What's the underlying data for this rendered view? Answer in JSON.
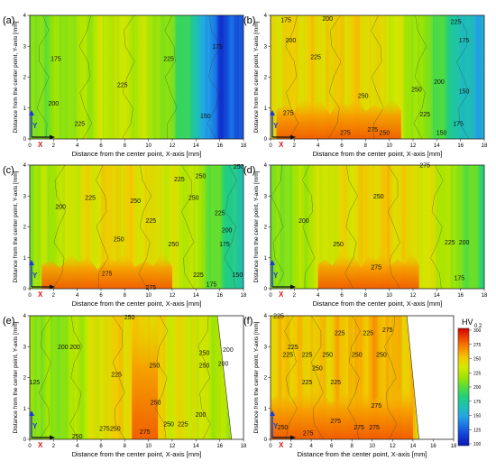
{
  "figure": {
    "colorbar": {
      "title": "HV",
      "subscript": "0.2",
      "ticks": [
        "300",
        "275",
        "250",
        "225",
        "200",
        "175",
        "150",
        "125",
        "100"
      ],
      "colors": [
        "#d40000",
        "#f04500",
        "#f88a00",
        "#f4c800",
        "#d2e800",
        "#9fe400",
        "#56dd3a",
        "#22cf7a",
        "#1ec0b4",
        "#22a6e6",
        "#1a70e6",
        "#123cd4",
        "#0c14b4"
      ]
    }
  },
  "chart_data": [
    {
      "id": "a",
      "type": "heatmap",
      "panel_label": "(a)",
      "xlabel": "Distance from the center point, X-axis [mm]",
      "ylabel": "Distance from the center point, Y-axis [mm]",
      "xticks": [
        "0",
        "2",
        "4",
        "6",
        "8",
        "10",
        "12",
        "14",
        "16",
        "18"
      ],
      "yticks": [
        "0",
        "1",
        "2",
        "3",
        "4"
      ],
      "xlim": [
        0,
        18
      ],
      "ylim": [
        0,
        4
      ],
      "x_extent": 18,
      "profile_x": [
        0,
        2,
        4,
        6,
        8,
        10,
        12,
        14,
        16,
        18
      ],
      "profile_hv": [
        205,
        212,
        218,
        226,
        228,
        224,
        205,
        170,
        120,
        130
      ],
      "red_zone": null,
      "contour_labels": [
        {
          "text": "175",
          "x": 2.2,
          "y": 2.6
        },
        {
          "text": "225",
          "x": 11.7,
          "y": 2.6
        },
        {
          "text": "175",
          "x": 15.8,
          "y": 3.0
        },
        {
          "text": "225",
          "x": 7.8,
          "y": 1.75
        },
        {
          "text": "200",
          "x": 2.0,
          "y": 1.15
        },
        {
          "text": "225",
          "x": 4.2,
          "y": 0.5
        },
        {
          "text": "150",
          "x": 14.8,
          "y": 0.75
        }
      ],
      "axis_markers": {
        "x": "X",
        "y": "Y"
      }
    },
    {
      "id": "b",
      "type": "heatmap",
      "panel_label": "(b)",
      "xlabel": "Distance from the center point, X-axis [mm]",
      "ylabel": "Distance from the center point, Y-axis [mm]",
      "xticks": [
        "0",
        "2",
        "4",
        "6",
        "8",
        "10",
        "12",
        "14",
        "16",
        "18"
      ],
      "yticks": [
        "0",
        "1",
        "2",
        "3",
        "4"
      ],
      "xlim": [
        0,
        18
      ],
      "ylim": [
        0,
        4
      ],
      "x_extent": 18,
      "profile_x": [
        0,
        2,
        4,
        6,
        8,
        10,
        12,
        14,
        16,
        18
      ],
      "profile_hv": [
        238,
        245,
        244,
        246,
        244,
        236,
        218,
        200,
        165,
        155
      ],
      "red_zone": {
        "x0": 0.5,
        "x1": 11,
        "depth": 1.25,
        "amp": 28
      },
      "contour_labels": [
        {
          "text": "175",
          "x": 1.3,
          "y": 3.85
        },
        {
          "text": "200",
          "x": 4.8,
          "y": 3.9
        },
        {
          "text": "200",
          "x": 1.7,
          "y": 3.2
        },
        {
          "text": "225",
          "x": 15.6,
          "y": 3.8
        },
        {
          "text": "175",
          "x": 16.3,
          "y": 3.2
        },
        {
          "text": "225",
          "x": 3.8,
          "y": 2.65
        },
        {
          "text": "200",
          "x": 14.2,
          "y": 1.85
        },
        {
          "text": "250",
          "x": 7.8,
          "y": 1.4
        },
        {
          "text": "150",
          "x": 16.3,
          "y": 1.55
        },
        {
          "text": "250",
          "x": 12.3,
          "y": 1.6
        },
        {
          "text": "275",
          "x": 1.5,
          "y": 0.85
        },
        {
          "text": "225",
          "x": 13.0,
          "y": 0.8
        },
        {
          "text": "175",
          "x": 15.8,
          "y": 0.5
        },
        {
          "text": "150",
          "x": 14.4,
          "y": 0.2
        },
        {
          "text": "275",
          "x": 6.3,
          "y": 0.2
        },
        {
          "text": "275",
          "x": 8.6,
          "y": 0.3
        },
        {
          "text": "250",
          "x": 9.6,
          "y": 0.2
        }
      ],
      "axis_markers": {
        "x": "X",
        "y": "Y"
      }
    },
    {
      "id": "c",
      "type": "heatmap",
      "panel_label": "(c)",
      "xlabel": "Distance from the center point, X-axis [mm]",
      "ylabel": "Distance from the center point, Y-axis [mm]",
      "xticks": [
        "0",
        "2",
        "4",
        "6",
        "8",
        "10",
        "12",
        "14",
        "16",
        "18"
      ],
      "yticks": [
        "0",
        "1",
        "2",
        "3",
        "4"
      ],
      "xlim": [
        0,
        18
      ],
      "ylim": [
        0,
        4
      ],
      "x_extent": 18,
      "profile_x": [
        0,
        2,
        4,
        6,
        8,
        10,
        12,
        14,
        16,
        18
      ],
      "profile_hv": [
        215,
        222,
        235,
        242,
        244,
        240,
        232,
        222,
        195,
        165
      ],
      "red_zone": {
        "x0": 1,
        "x1": 12,
        "depth": 1.05,
        "amp": 24
      },
      "contour_labels": [
        {
          "text": "250",
          "x": 17.6,
          "y": 3.95
        },
        {
          "text": "225",
          "x": 12.6,
          "y": 3.55
        },
        {
          "text": "250",
          "x": 14.4,
          "y": 3.65
        },
        {
          "text": "225",
          "x": 5.1,
          "y": 2.95
        },
        {
          "text": "250",
          "x": 8.9,
          "y": 2.85
        },
        {
          "text": "250",
          "x": 13.8,
          "y": 2.95
        },
        {
          "text": "200",
          "x": 2.6,
          "y": 2.65
        },
        {
          "text": "225",
          "x": 10.2,
          "y": 2.2
        },
        {
          "text": "225",
          "x": 16.0,
          "y": 2.45
        },
        {
          "text": "200",
          "x": 16.6,
          "y": 1.9
        },
        {
          "text": "250",
          "x": 7.5,
          "y": 1.6
        },
        {
          "text": "250",
          "x": 12.1,
          "y": 1.45
        },
        {
          "text": "175",
          "x": 16.4,
          "y": 1.45
        },
        {
          "text": "275",
          "x": 6.5,
          "y": 0.5
        },
        {
          "text": "225",
          "x": 14.2,
          "y": 0.45
        },
        {
          "text": "150",
          "x": 17.5,
          "y": 0.45
        },
        {
          "text": "175",
          "x": 15.3,
          "y": 0.15
        },
        {
          "text": "275",
          "x": 10.2,
          "y": 0.05
        }
      ],
      "axis_markers": {
        "x": "X",
        "y": "Y"
      }
    },
    {
      "id": "d",
      "type": "heatmap",
      "panel_label": "(d)",
      "xlabel": "Distance from the center point, X-axis [mm]",
      "ylabel": "Distance from the center point, Y-axis [mm]",
      "xticks": [
        "0",
        "2",
        "4",
        "6",
        "8",
        "10",
        "12",
        "14",
        "16",
        "18"
      ],
      "yticks": [
        "0",
        "1",
        "2",
        "3",
        "4"
      ],
      "xlim": [
        0,
        18
      ],
      "ylim": [
        0,
        4
      ],
      "x_extent": 18,
      "profile_x": [
        0,
        2,
        4,
        6,
        8,
        10,
        12,
        14,
        16,
        18
      ],
      "profile_hv": [
        205,
        215,
        230,
        238,
        245,
        248,
        240,
        228,
        210,
        190
      ],
      "red_zone": {
        "x0": 4,
        "x1": 12.5,
        "depth": 1.1,
        "amp": 30
      },
      "contour_labels": [
        {
          "text": "275",
          "x": 13.0,
          "y": 4.0
        },
        {
          "text": "250",
          "x": 9.1,
          "y": 3.0
        },
        {
          "text": "200",
          "x": 2.8,
          "y": 2.2
        },
        {
          "text": "250",
          "x": 5.7,
          "y": 1.45
        },
        {
          "text": "225",
          "x": 15.1,
          "y": 1.5
        },
        {
          "text": "200",
          "x": 16.3,
          "y": 1.5
        },
        {
          "text": "275",
          "x": 8.9,
          "y": 0.7
        },
        {
          "text": "175",
          "x": 15.9,
          "y": 0.35
        }
      ],
      "axis_markers": {
        "x": "X",
        "y": "Y"
      }
    },
    {
      "id": "e",
      "type": "heatmap",
      "panel_label": "(e)",
      "xlabel": "Distance from the center point, X-axis [mm]",
      "ylabel": "Distance from the center point, Y-axis [mm]",
      "xticks": [
        "0",
        "2",
        "4",
        "6",
        "8",
        "10",
        "12",
        "14",
        "16",
        "18"
      ],
      "yticks": [
        "0",
        "1",
        "2",
        "3",
        "4"
      ],
      "xlim": [
        0,
        18
      ],
      "ylim": [
        0,
        4
      ],
      "x_extent": 17,
      "profile_x": [
        0,
        2,
        4,
        6,
        8,
        10,
        12,
        14,
        16,
        18
      ],
      "profile_hv": [
        215,
        210,
        222,
        240,
        246,
        245,
        238,
        232,
        222,
        215
      ],
      "red_zone": {
        "x0": 8.6,
        "x1": 10.8,
        "depth": 4,
        "amp": 22
      },
      "contour_labels": [
        {
          "text": "250",
          "x": 8.4,
          "y": 3.95
        },
        {
          "text": "200",
          "x": 2.8,
          "y": 3.0
        },
        {
          "text": "200",
          "x": 3.8,
          "y": 3.0
        },
        {
          "text": "250",
          "x": 14.7,
          "y": 2.8
        },
        {
          "text": "200",
          "x": 16.7,
          "y": 2.9
        },
        {
          "text": "250",
          "x": 10.5,
          "y": 2.4
        },
        {
          "text": "225",
          "x": 7.3,
          "y": 2.1
        },
        {
          "text": "250",
          "x": 14.7,
          "y": 2.4
        },
        {
          "text": "200",
          "x": 16.3,
          "y": 2.45
        },
        {
          "text": "125",
          "x": 0.4,
          "y": 1.85
        },
        {
          "text": "250",
          "x": 10.6,
          "y": 1.2
        },
        {
          "text": "200",
          "x": 14.4,
          "y": 0.8
        },
        {
          "text": "275",
          "x": 6.3,
          "y": 0.35
        },
        {
          "text": "250",
          "x": 7.2,
          "y": 0.35
        },
        {
          "text": "250",
          "x": 11.7,
          "y": 0.5
        },
        {
          "text": "225",
          "x": 12.9,
          "y": 0.5
        },
        {
          "text": "275",
          "x": 9.7,
          "y": 0.25
        },
        {
          "text": "250",
          "x": 4.0,
          "y": 0.1
        }
      ],
      "axis_markers": {
        "x": "X",
        "y": "Y"
      }
    },
    {
      "id": "f",
      "type": "heatmap",
      "panel_label": "(f)",
      "xlabel": "Distance from the center point, X-axis [mm]",
      "ylabel": "Distance from the center point, Y-axis [mm]",
      "xticks": [
        "0",
        "2",
        "4",
        "6",
        "8",
        "10",
        "12",
        "14",
        "16",
        "18"
      ],
      "yticks": [
        "0",
        "1",
        "2",
        "3",
        "4"
      ],
      "xlim": [
        0,
        18
      ],
      "ylim": [
        0,
        4
      ],
      "x_extent": 14.6,
      "profile_x": [
        0,
        2,
        4,
        6,
        8,
        10,
        12,
        14,
        16,
        18
      ],
      "profile_hv": [
        246,
        250,
        248,
        250,
        252,
        258,
        255,
        246,
        240,
        240
      ],
      "red_zone": {
        "x0": 0,
        "x1": 14,
        "depth": 1.6,
        "amp": 30
      },
      "contour_labels": [
        {
          "text": "225",
          "x": 0.8,
          "y": 4.0
        },
        {
          "text": "225",
          "x": 6.8,
          "y": 3.45
        },
        {
          "text": "225",
          "x": 9.6,
          "y": 3.45
        },
        {
          "text": "275",
          "x": 11.5,
          "y": 3.55
        },
        {
          "text": "225",
          "x": 2.2,
          "y": 3.0
        },
        {
          "text": "225",
          "x": 1.7,
          "y": 2.75
        },
        {
          "text": "225",
          "x": 3.6,
          "y": 2.75
        },
        {
          "text": "250",
          "x": 5.6,
          "y": 2.75
        },
        {
          "text": "250",
          "x": 8.5,
          "y": 2.75
        },
        {
          "text": "250",
          "x": 10.9,
          "y": 2.75
        },
        {
          "text": "250",
          "x": 4.6,
          "y": 2.3
        },
        {
          "text": "225",
          "x": 3.6,
          "y": 1.85
        },
        {
          "text": "225",
          "x": 6.4,
          "y": 1.85
        },
        {
          "text": "275",
          "x": 10.4,
          "y": 1.1
        },
        {
          "text": "275",
          "x": 6.4,
          "y": 0.6
        },
        {
          "text": "275",
          "x": 3.7,
          "y": 0.2
        },
        {
          "text": "275",
          "x": 8.7,
          "y": 0.4
        },
        {
          "text": "275",
          "x": 10.2,
          "y": 0.4
        },
        {
          "text": "250",
          "x": 1.2,
          "y": 0.4
        }
      ],
      "axis_markers": {
        "x": "X",
        "y": "Y"
      }
    }
  ]
}
